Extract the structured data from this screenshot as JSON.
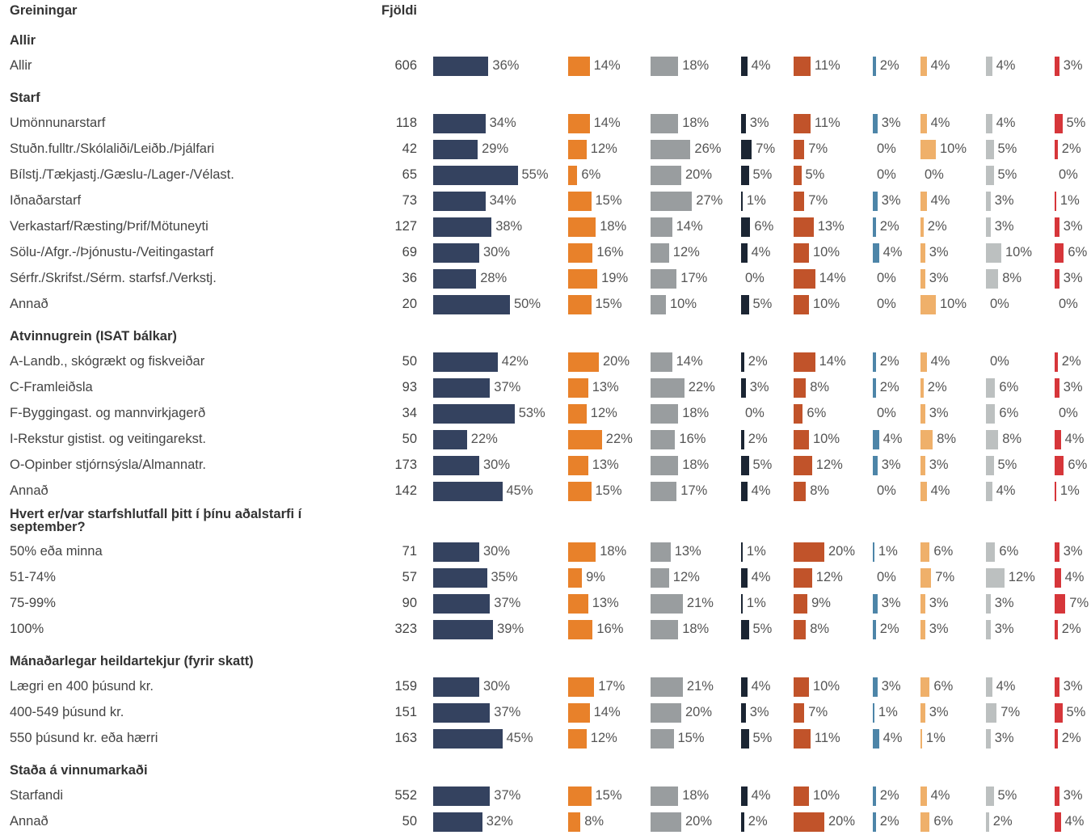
{
  "chart_data": {
    "type": "table-bar",
    "header": {
      "label": "Greiningar",
      "count": "Fjöldi"
    },
    "colors": [
      "#34425f",
      "#e8812a",
      "#999d9f",
      "#1b2533",
      "#c1532a",
      "#4d85a8",
      "#efb06a",
      "#bcc0c0",
      "#d6363a"
    ],
    "groups": [
      {
        "title": "Allir",
        "rows": [
          {
            "label": "Allir",
            "count": 606,
            "values": [
              36,
              14,
              18,
              4,
              11,
              2,
              4,
              4,
              3
            ],
            "value_labels": [
              "36%",
              "14%",
              "18%",
              "4%",
              "11%",
              "2%",
              "4%",
              "4%",
              "3%"
            ]
          }
        ]
      },
      {
        "title": "Starf",
        "rows": [
          {
            "label": "Umönnunarstarf",
            "count": 118,
            "values": [
              34,
              14,
              18,
              3,
              11,
              3,
              4,
              4,
              5
            ],
            "value_labels": [
              "34%",
              "14%",
              "18%",
              "3%",
              "11%",
              "3%",
              "4%",
              "4%",
              "5%"
            ]
          },
          {
            "label": "Stuðn.fulltr./Skólaliði/Leiðb./Þjálfari",
            "count": 42,
            "values": [
              29,
              12,
              26,
              7,
              7,
              0,
              10,
              5,
              2
            ],
            "value_labels": [
              "29%",
              "12%",
              "26%",
              "7%",
              "7%",
              "0%",
              "10%",
              "5%",
              "2%"
            ]
          },
          {
            "label": "Bílstj./Tækjastj./Gæslu-/Lager-/Vélast.",
            "count": 65,
            "values": [
              55,
              6,
              20,
              5,
              5,
              0,
              0,
              5,
              0
            ],
            "value_labels": [
              "55%",
              "6%",
              "20%",
              "5%",
              "5%",
              "0%",
              "0%",
              "5%",
              "0%"
            ]
          },
          {
            "label": "Iðnaðarstarf",
            "count": 73,
            "values": [
              34,
              15,
              27,
              1,
              7,
              3,
              4,
              3,
              1
            ],
            "value_labels": [
              "34%",
              "15%",
              "27%",
              "1%",
              "7%",
              "3%",
              "4%",
              "3%",
              "1%"
            ]
          },
          {
            "label": "Verkastarf/Ræsting/Þrif/Mötuneyti",
            "count": 127,
            "values": [
              38,
              18,
              14,
              6,
              13,
              2,
              2,
              3,
              3
            ],
            "value_labels": [
              "38%",
              "18%",
              "14%",
              "6%",
              "13%",
              "2%",
              "2%",
              "3%",
              "3%"
            ]
          },
          {
            "label": "Sölu-/Afgr.-/Þjónustu-/Veitingastarf",
            "count": 69,
            "values": [
              30,
              16,
              12,
              4,
              10,
              4,
              3,
              10,
              6
            ],
            "value_labels": [
              "30%",
              "16%",
              "12%",
              "4%",
              "10%",
              "4%",
              "3%",
              "10%",
              "6%"
            ]
          },
          {
            "label": "Sérfr./Skrifst./Sérm. starfsf./Verkstj.",
            "count": 36,
            "values": [
              28,
              19,
              17,
              0,
              14,
              0,
              3,
              8,
              3
            ],
            "value_labels": [
              "28%",
              "19%",
              "17%",
              "0%",
              "14%",
              "0%",
              "3%",
              "8%",
              "3%"
            ]
          },
          {
            "label": "Annað",
            "count": 20,
            "values": [
              50,
              15,
              10,
              5,
              10,
              0,
              10,
              0,
              0
            ],
            "value_labels": [
              "50%",
              "15%",
              "10%",
              "5%",
              "10%",
              "0%",
              "10%",
              "0%",
              "0%"
            ]
          }
        ]
      },
      {
        "title": "Atvinnugrein (ISAT bálkar)",
        "rows": [
          {
            "label": "A-Landb., skógrækt og fiskveiðar",
            "count": 50,
            "values": [
              42,
              20,
              14,
              2,
              14,
              2,
              4,
              0,
              2
            ],
            "value_labels": [
              "42%",
              "20%",
              "14%",
              "2%",
              "14%",
              "2%",
              "4%",
              "0%",
              "2%"
            ]
          },
          {
            "label": "C-Framleiðsla",
            "count": 93,
            "values": [
              37,
              13,
              22,
              3,
              8,
              2,
              2,
              6,
              3
            ],
            "value_labels": [
              "37%",
              "13%",
              "22%",
              "3%",
              "8%",
              "2%",
              "2%",
              "6%",
              "3%"
            ]
          },
          {
            "label": "F-Byggingast. og mannvirkjagerð",
            "count": 34,
            "values": [
              53,
              12,
              18,
              0,
              6,
              0,
              3,
              6,
              0
            ],
            "value_labels": [
              "53%",
              "12%",
              "18%",
              "0%",
              "6%",
              "0%",
              "3%",
              "6%",
              "0%"
            ]
          },
          {
            "label": "I-Rekstur gistist. og veitingarekst.",
            "count": 50,
            "values": [
              22,
              22,
              16,
              2,
              10,
              4,
              8,
              8,
              4
            ],
            "value_labels": [
              "22%",
              "22%",
              "16%",
              "2%",
              "10%",
              "4%",
              "8%",
              "8%",
              "4%"
            ]
          },
          {
            "label": "O-Opinber stjórnsýsla/Almannatr.",
            "count": 173,
            "values": [
              30,
              13,
              18,
              5,
              12,
              3,
              3,
              5,
              6
            ],
            "value_labels": [
              "30%",
              "13%",
              "18%",
              "5%",
              "12%",
              "3%",
              "3%",
              "5%",
              "6%"
            ]
          },
          {
            "label": "Annað",
            "count": 142,
            "values": [
              45,
              15,
              17,
              4,
              8,
              0,
              4,
              4,
              1
            ],
            "value_labels": [
              "45%",
              "15%",
              "17%",
              "4%",
              "8%",
              "0%",
              "4%",
              "4%",
              "1%"
            ]
          }
        ]
      },
      {
        "title": "Hvert er/var starfshlutfall þitt í þínu aðalstarfi í september?",
        "rows": [
          {
            "label": "50% eða minna",
            "count": 71,
            "values": [
              30,
              18,
              13,
              1,
              20,
              1,
              6,
              6,
              3
            ],
            "value_labels": [
              "30%",
              "18%",
              "13%",
              "1%",
              "20%",
              "1%",
              "6%",
              "6%",
              "3%"
            ]
          },
          {
            "label": "51-74%",
            "count": 57,
            "values": [
              35,
              9,
              12,
              4,
              12,
              0,
              7,
              12,
              4
            ],
            "value_labels": [
              "35%",
              "9%",
              "12%",
              "4%",
              "12%",
              "0%",
              "7%",
              "12%",
              "4%"
            ]
          },
          {
            "label": "75-99%",
            "count": 90,
            "values": [
              37,
              13,
              21,
              1,
              9,
              3,
              3,
              3,
              7
            ],
            "value_labels": [
              "37%",
              "13%",
              "21%",
              "1%",
              "9%",
              "3%",
              "3%",
              "3%",
              "7%"
            ]
          },
          {
            "label": "100%",
            "count": 323,
            "values": [
              39,
              16,
              18,
              5,
              8,
              2,
              3,
              3,
              2
            ],
            "value_labels": [
              "39%",
              "16%",
              "18%",
              "5%",
              "8%",
              "2%",
              "3%",
              "3%",
              "2%"
            ]
          }
        ]
      },
      {
        "title": "Mánaðarlegar heildartekjur (fyrir skatt)",
        "rows": [
          {
            "label": "Lægri en 400 þúsund kr.",
            "count": 159,
            "values": [
              30,
              17,
              21,
              4,
              10,
              3,
              6,
              4,
              3
            ],
            "value_labels": [
              "30%",
              "17%",
              "21%",
              "4%",
              "10%",
              "3%",
              "6%",
              "4%",
              "3%"
            ]
          },
          {
            "label": "400-549 þúsund kr.",
            "count": 151,
            "values": [
              37,
              14,
              20,
              3,
              7,
              1,
              3,
              7,
              5
            ],
            "value_labels": [
              "37%",
              "14%",
              "20%",
              "3%",
              "7%",
              "1%",
              "3%",
              "7%",
              "5%"
            ]
          },
          {
            "label": "550 þúsund kr. eða hærri",
            "count": 163,
            "values": [
              45,
              12,
              15,
              5,
              11,
              4,
              1,
              3,
              2
            ],
            "value_labels": [
              "45%",
              "12%",
              "15%",
              "5%",
              "11%",
              "4%",
              "1%",
              "3%",
              "2%"
            ]
          }
        ]
      },
      {
        "title": "Staða á vinnumarkaði",
        "rows": [
          {
            "label": "Starfandi",
            "count": 552,
            "values": [
              37,
              15,
              18,
              4,
              10,
              2,
              4,
              5,
              3
            ],
            "value_labels": [
              "37%",
              "15%",
              "18%",
              "4%",
              "10%",
              "2%",
              "4%",
              "5%",
              "3%"
            ]
          },
          {
            "label": "Annað",
            "count": 50,
            "values": [
              32,
              8,
              20,
              2,
              20,
              2,
              6,
              2,
              4
            ],
            "value_labels": [
              "32%",
              "8%",
              "20%",
              "2%",
              "20%",
              "2%",
              "6%",
              "2%",
              "4%"
            ]
          }
        ]
      }
    ]
  }
}
